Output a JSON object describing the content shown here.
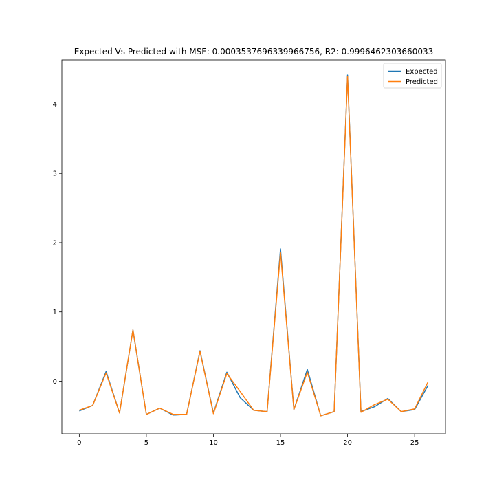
{
  "chart_data": {
    "type": "line",
    "title": "Expected Vs Predicted with MSE: 0.0003537696339966756, R2: 0.9996462303660033",
    "xlabel": "",
    "ylabel": "",
    "xlim": [
      -1.3,
      27.3
    ],
    "ylim": [
      -0.76,
      4.64
    ],
    "x_ticks": [
      0,
      5,
      10,
      15,
      20,
      25
    ],
    "y_ticks": [
      0,
      1,
      2,
      3,
      4
    ],
    "grid": false,
    "legend_position": "top-right",
    "x": [
      0,
      1,
      2,
      3,
      4,
      5,
      6,
      7,
      8,
      9,
      10,
      11,
      12,
      13,
      14,
      15,
      16,
      17,
      18,
      19,
      20,
      21,
      22,
      23,
      24,
      25,
      26
    ],
    "series": [
      {
        "name": "Expected",
        "color": "#1f77b4",
        "values": [
          -0.43,
          -0.35,
          0.14,
          -0.46,
          0.74,
          -0.48,
          -0.39,
          -0.49,
          -0.48,
          0.44,
          -0.46,
          0.13,
          -0.24,
          -0.42,
          -0.44,
          1.91,
          -0.41,
          0.17,
          -0.5,
          -0.44,
          4.42,
          -0.44,
          -0.37,
          -0.25,
          -0.44,
          -0.41,
          -0.06
        ]
      },
      {
        "name": "Predicted",
        "color": "#ff7f0e",
        "values": [
          -0.42,
          -0.35,
          0.12,
          -0.46,
          0.74,
          -0.48,
          -0.39,
          -0.48,
          -0.48,
          0.43,
          -0.47,
          0.11,
          -0.15,
          -0.42,
          -0.44,
          1.86,
          -0.41,
          0.13,
          -0.5,
          -0.44,
          4.4,
          -0.45,
          -0.34,
          -0.26,
          -0.44,
          -0.4,
          -0.01
        ]
      }
    ]
  }
}
